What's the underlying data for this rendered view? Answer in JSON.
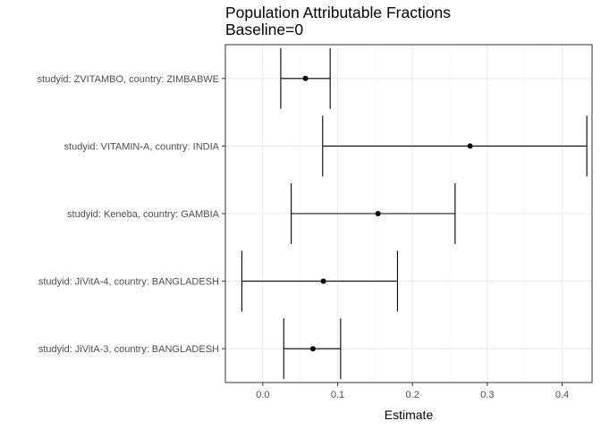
{
  "chart_data": {
    "type": "forest",
    "title": "Population Attributable Fractions",
    "subtitle": "Baseline=0",
    "xlabel": "Estimate",
    "ylabel": "",
    "xlim": [
      -0.05,
      0.44
    ],
    "x_ticks": [
      0.0,
      0.1,
      0.2,
      0.3,
      0.4
    ],
    "x_tick_labels": [
      "0.0",
      "0.1",
      "0.2",
      "0.3",
      "0.4"
    ],
    "grid": true,
    "legend": "none",
    "colors": {
      "panel_border": "#333333",
      "grid_major": "#ebebeb",
      "grid_minor": "#f5f5f5",
      "mark": "#000000"
    },
    "rows": [
      {
        "label": "studyid: ZVITAMBO, country: ZIMBABWE",
        "estimate": 0.057,
        "lower": 0.024,
        "upper": 0.09
      },
      {
        "label": "studyid: VITAMIN-A, country: INDIA",
        "estimate": 0.277,
        "lower": 0.08,
        "upper": 0.433
      },
      {
        "label": "studyid: Keneba, country: GAMBIA",
        "estimate": 0.154,
        "lower": 0.038,
        "upper": 0.257
      },
      {
        "label": "studyid: JiVitA-4, country: BANGLADESH",
        "estimate": 0.081,
        "lower": -0.028,
        "upper": 0.18
      },
      {
        "label": "studyid: JiVitA-3, country: BANGLADESH",
        "estimate": 0.067,
        "lower": 0.028,
        "upper": 0.104
      }
    ]
  }
}
